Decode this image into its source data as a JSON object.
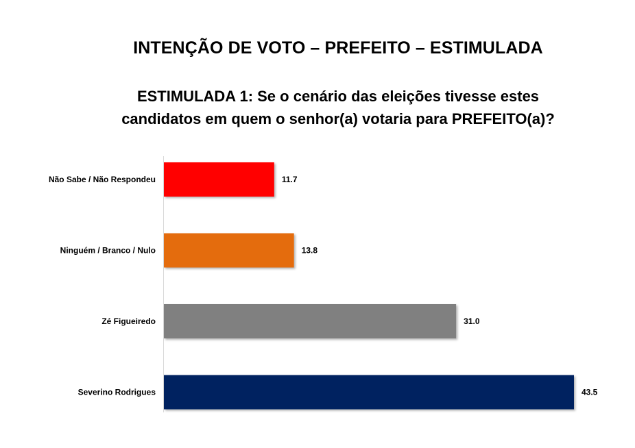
{
  "title": "INTENÇÃO DE VOTO – PREFEITO – ESTIMULADA",
  "subtitle": {
    "line1": "ESTIMULADA 1: Se o cenário das eleições tivesse estes",
    "line2": "candidatos em quem o senhor(a) votaria para PREFEITO(a)?"
  },
  "chart_data": {
    "type": "bar",
    "orientation": "horizontal",
    "categories": [
      "Não Sabe / Não Respondeu",
      "Ninguém / Branco / Nulo",
      "Zé Figueiredo",
      "Severino Rodrigues"
    ],
    "values": [
      11.7,
      13.8,
      31.0,
      43.5
    ],
    "value_labels": [
      "11.7",
      "13.8",
      "31.0",
      "43.5"
    ],
    "colors": [
      "#ff0000",
      "#e46c0a",
      "#808080",
      "#002060"
    ],
    "xlim": [
      0,
      43.5
    ],
    "grid": false,
    "legend": "none"
  }
}
